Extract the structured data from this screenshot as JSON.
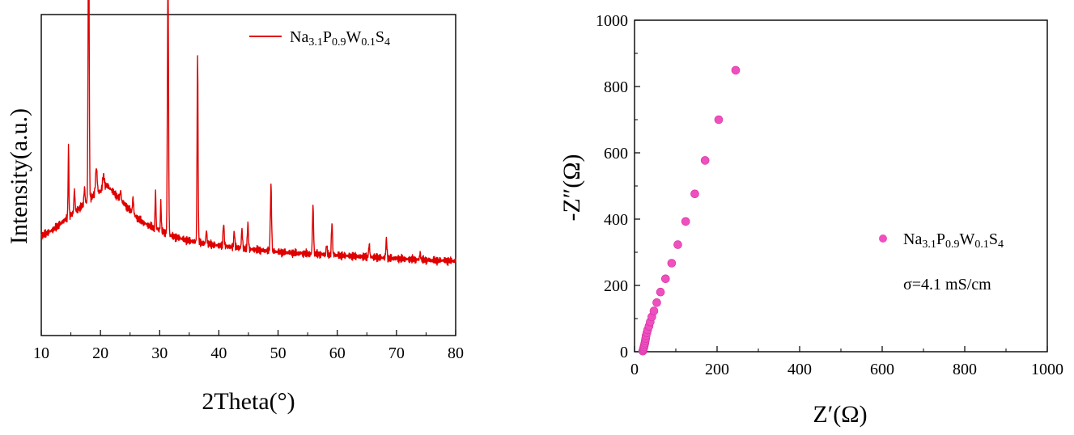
{
  "chart_data": [
    {
      "type": "line",
      "xlabel": "2Theta(°)",
      "ylabel": "Intensity(a.u.)",
      "xlim": [
        10,
        80
      ],
      "ylim": [
        0,
        1.0
      ],
      "xticks": [
        "10",
        "20",
        "30",
        "40",
        "50",
        "60",
        "70",
        "80"
      ],
      "legend_position": "top-right",
      "series": [
        {
          "name": "Na3.1P0.9W0.1S4",
          "name_parts": [
            [
              "Na",
              ""
            ],
            [
              "3.1",
              "sub"
            ],
            [
              "P",
              ""
            ],
            [
              "0.9",
              "sub"
            ],
            [
              "W",
              ""
            ],
            [
              "0.1",
              "sub"
            ],
            [
              "S",
              ""
            ],
            [
              "4",
              "sub"
            ]
          ],
          "color": "#e00000",
          "baseline": [
            [
              10,
              0.31
            ],
            [
              12,
              0.33
            ],
            [
              14,
              0.36
            ],
            [
              16,
              0.39
            ],
            [
              18,
              0.42
            ],
            [
              19,
              0.44
            ],
            [
              20,
              0.45
            ],
            [
              21,
              0.47
            ],
            [
              22,
              0.45
            ],
            [
              23,
              0.43
            ],
            [
              24,
              0.41
            ],
            [
              25,
              0.39
            ],
            [
              26,
              0.37
            ],
            [
              27,
              0.355
            ],
            [
              28,
              0.345
            ],
            [
              29,
              0.335
            ],
            [
              30,
              0.33
            ],
            [
              31,
              0.32
            ],
            [
              32,
              0.31
            ],
            [
              35,
              0.295
            ],
            [
              40,
              0.28
            ],
            [
              45,
              0.27
            ],
            [
              50,
              0.26
            ],
            [
              55,
              0.255
            ],
            [
              60,
              0.25
            ],
            [
              65,
              0.245
            ],
            [
              70,
              0.24
            ],
            [
              75,
              0.235
            ],
            [
              80,
              0.232
            ]
          ],
          "peaks": [
            [
              14.6,
              0.22,
              0.15
            ],
            [
              15.6,
              0.07,
              0.2
            ],
            [
              17.3,
              0.05,
              0.2
            ],
            [
              18.0,
              0.95,
              0.2
            ],
            [
              19.3,
              0.08,
              0.3
            ],
            [
              20.5,
              0.04,
              0.3
            ],
            [
              23.4,
              0.03,
              0.2
            ],
            [
              25.5,
              0.05,
              0.2
            ],
            [
              29.3,
              0.12,
              0.15
            ],
            [
              30.2,
              0.09,
              0.15
            ],
            [
              31.4,
              0.82,
              0.2
            ],
            [
              36.4,
              0.58,
              0.18
            ],
            [
              37.9,
              0.04,
              0.2
            ],
            [
              40.8,
              0.07,
              0.2
            ],
            [
              42.6,
              0.05,
              0.2
            ],
            [
              43.9,
              0.06,
              0.2
            ],
            [
              44.9,
              0.08,
              0.2
            ],
            [
              48.8,
              0.2,
              0.22
            ],
            [
              55.9,
              0.15,
              0.2
            ],
            [
              58.2,
              0.03,
              0.2
            ],
            [
              59.1,
              0.1,
              0.2
            ],
            [
              65.4,
              0.04,
              0.2
            ],
            [
              68.3,
              0.06,
              0.2
            ],
            [
              74.0,
              0.02,
              0.2
            ]
          ]
        }
      ]
    },
    {
      "type": "scatter",
      "xlabel": "Z′(Ω)",
      "ylabel": "-Z″(Ω)",
      "xlim": [
        0,
        1000
      ],
      "ylim": [
        0,
        1000
      ],
      "xticks": [
        0,
        200,
        400,
        600,
        800,
        1000
      ],
      "yticks": [
        0,
        200,
        400,
        600,
        800,
        1000
      ],
      "legend_position": "right",
      "annotation": "σ=4.1 mS/cm",
      "series": [
        {
          "name": "Na3.1P0.9W0.1S4",
          "name_parts": [
            [
              "Na",
              ""
            ],
            [
              "3.1",
              "sub"
            ],
            [
              "P",
              ""
            ],
            [
              "0.9",
              "sub"
            ],
            [
              "W",
              ""
            ],
            [
              "0.1",
              "sub"
            ],
            [
              "S",
              ""
            ],
            [
              "4",
              "sub"
            ]
          ],
          "color": "#f04fc0",
          "points": [
            [
              20,
              2
            ],
            [
              21,
              6
            ],
            [
              22,
              10
            ],
            [
              23,
              15
            ],
            [
              24,
              20
            ],
            [
              25,
              26
            ],
            [
              26,
              33
            ],
            [
              27,
              40
            ],
            [
              28,
              48
            ],
            [
              30,
              57
            ],
            [
              32,
              66
            ],
            [
              35,
              77
            ],
            [
              38,
              90
            ],
            [
              42,
              105
            ],
            [
              47,
              123
            ],
            [
              54,
              148
            ],
            [
              63,
              180
            ],
            [
              75,
              220
            ],
            [
              90,
              267
            ],
            [
              105,
              323
            ],
            [
              124,
              393
            ],
            [
              146,
              476
            ],
            [
              171,
              577
            ],
            [
              204,
              700
            ],
            [
              245,
              849
            ]
          ]
        }
      ]
    }
  ]
}
